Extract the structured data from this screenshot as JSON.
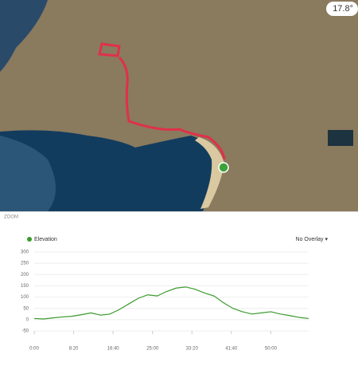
{
  "map": {
    "temperature": "17.8°"
  },
  "zoom_label": "ZOOM",
  "overlay_select": "No Overlay ▾",
  "chart_data": {
    "type": "line",
    "series": [
      {
        "name": "Elevation",
        "color": "#3a9a2c",
        "values": [
          5,
          3,
          8,
          12,
          15,
          22,
          30,
          20,
          25,
          45,
          70,
          95,
          110,
          105,
          125,
          140,
          145,
          135,
          118,
          105,
          75,
          50,
          35,
          25,
          30,
          35,
          25,
          18,
          10,
          5
        ]
      }
    ],
    "x": [
      0,
      120,
      240,
      360,
      480,
      600,
      720,
      840,
      960,
      1080,
      1200,
      1320,
      1440,
      1560,
      1680,
      1800,
      1920,
      2040,
      2160,
      2280,
      2400,
      2520,
      2640,
      2760,
      2880,
      3000,
      3120,
      3240,
      3360,
      3480
    ],
    "xlim": [
      0,
      3480
    ],
    "xticks": [
      {
        "value": 0,
        "label": "0:00"
      },
      {
        "value": 500,
        "label": "8:20"
      },
      {
        "value": 1000,
        "label": "16:40"
      },
      {
        "value": 1500,
        "label": "25:00"
      },
      {
        "value": 2000,
        "label": "33:20"
      },
      {
        "value": 2500,
        "label": "41:40"
      },
      {
        "value": 3000,
        "label": "50:00"
      }
    ],
    "ylim": [
      -50,
      300
    ],
    "yticks": [
      -50,
      0,
      50,
      100,
      150,
      200,
      250,
      300
    ],
    "grid": true
  }
}
